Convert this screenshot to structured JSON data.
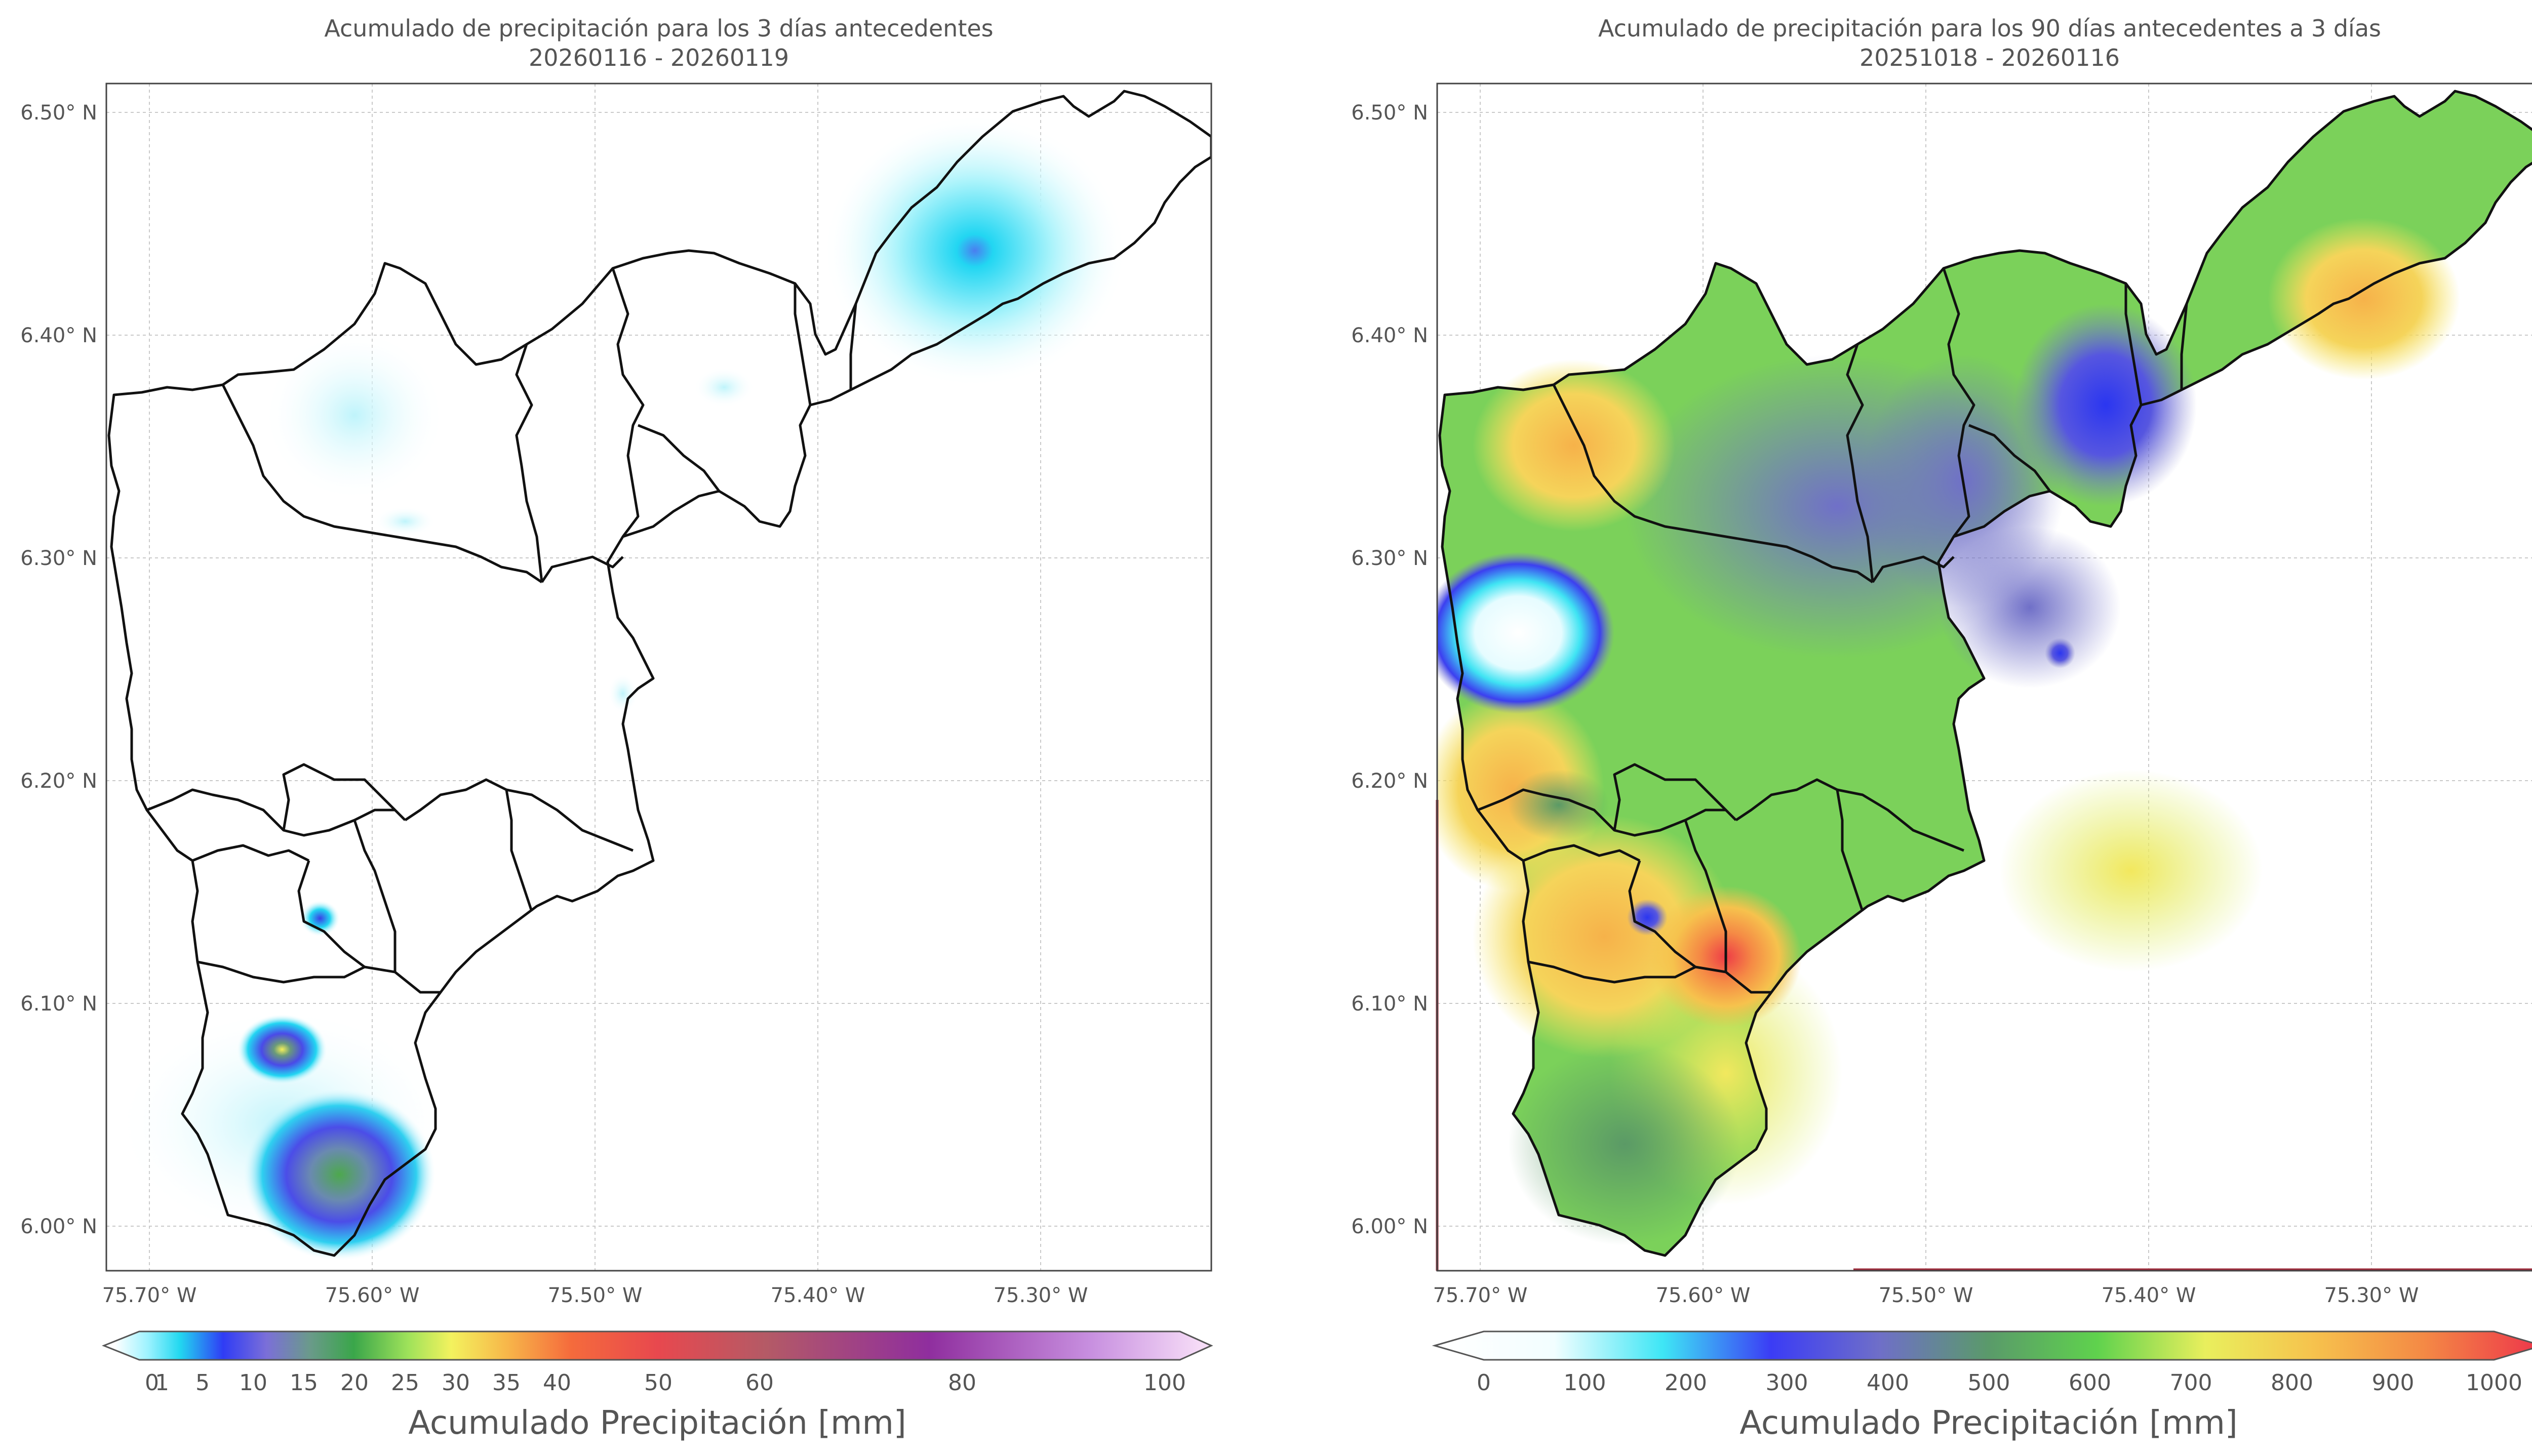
{
  "left_map": {
    "title_line1": "Acumulado de precipitación para los 3 días antecedentes",
    "title_line2": "20260116 - 20260119",
    "lon_labels": [
      "75.70° W",
      "75.60° W",
      "75.50° W",
      "75.40° W",
      "75.30° W"
    ],
    "lat_labels": [
      "6.50° N",
      "6.40° N",
      "6.30° N",
      "6.20° N",
      "6.10° N",
      "6.00° N"
    ],
    "colorbar": {
      "ticks": [
        "0",
        "1",
        "5",
        "10",
        "15",
        "20",
        "25",
        "30",
        "35",
        "40",
        "50",
        "60",
        "80",
        "100"
      ],
      "tick_values": [
        0,
        1,
        5,
        10,
        15,
        20,
        25,
        30,
        35,
        40,
        50,
        60,
        80,
        100
      ],
      "label": "Acumulado Precipitación [mm]",
      "stops": [
        {
          "v": 0,
          "c": "#ffffff"
        },
        {
          "v": 3,
          "c": "#9ff3ff"
        },
        {
          "v": 6,
          "c": "#22d8f0"
        },
        {
          "v": 10,
          "c": "#2f3cf5"
        },
        {
          "v": 14,
          "c": "#7b6fd8"
        },
        {
          "v": 18,
          "c": "#6a9a8a"
        },
        {
          "v": 22,
          "c": "#3aa64a"
        },
        {
          "v": 27,
          "c": "#9ee25a"
        },
        {
          "v": 31,
          "c": "#f3f25e"
        },
        {
          "v": 36,
          "c": "#f7b84a"
        },
        {
          "v": 42,
          "c": "#f56b3c"
        },
        {
          "v": 50,
          "c": "#e8484e"
        },
        {
          "v": 60,
          "c": "#b45a66"
        },
        {
          "v": 75,
          "c": "#8f2e9e"
        },
        {
          "v": 90,
          "c": "#c890e0"
        },
        {
          "v": 100,
          "c": "#f6dcf7"
        }
      ]
    }
  },
  "right_map": {
    "title_line1": "Acumulado de precipitación para los 90 días antecedentes a 3 días",
    "title_line2": "20251018 - 20260116",
    "lon_labels": [
      "75.70° W",
      "75.60° W",
      "75.50° W",
      "75.40° W",
      "75.30° W"
    ],
    "lat_labels": [
      "6.50° N",
      "6.40° N",
      "6.30° N",
      "6.20° N",
      "6.10° N",
      "6.00° N"
    ],
    "colorbar": {
      "ticks": [
        "0",
        "100",
        "200",
        "300",
        "400",
        "500",
        "600",
        "700",
        "800",
        "900",
        "1000"
      ],
      "tick_values": [
        0,
        100,
        200,
        300,
        400,
        500,
        600,
        700,
        800,
        900,
        1000
      ],
      "label": "Acumulado Precipitación [mm]",
      "stops": [
        {
          "v": 0,
          "c": "#ffffff"
        },
        {
          "v": 100,
          "c": "#f2feff"
        },
        {
          "v": 200,
          "c": "#3ee6f5"
        },
        {
          "v": 300,
          "c": "#3b3cf5"
        },
        {
          "v": 400,
          "c": "#6f6fc8"
        },
        {
          "v": 500,
          "c": "#5a9a6a"
        },
        {
          "v": 600,
          "c": "#5fd24d"
        },
        {
          "v": 700,
          "c": "#e9ef5d"
        },
        {
          "v": 800,
          "c": "#f6c24d"
        },
        {
          "v": 900,
          "c": "#f48a45"
        },
        {
          "v": 1000,
          "c": "#ee3c4a"
        }
      ]
    }
  },
  "colors": {
    "frame": "#444444",
    "grid": "#c9c9c9",
    "boundary": "#111111",
    "field_green": "#7bd15a"
  }
}
